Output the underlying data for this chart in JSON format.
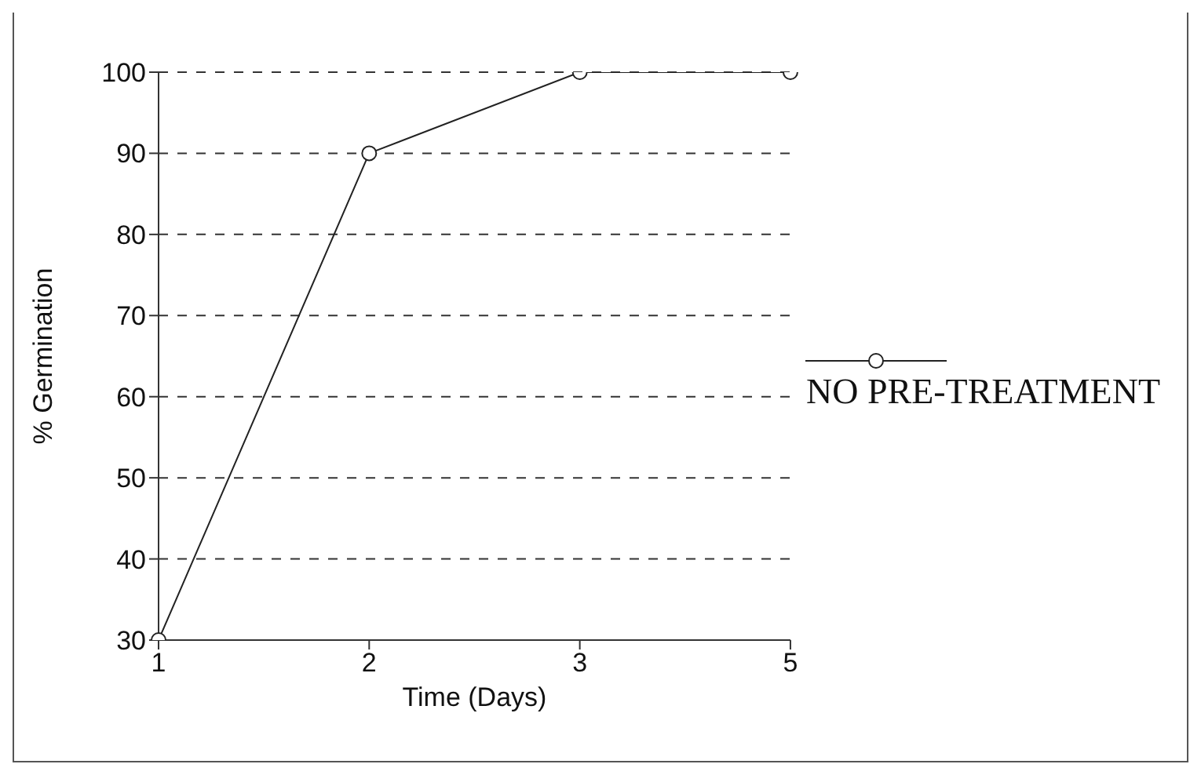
{
  "chart_data": {
    "type": "line",
    "xlabel": "Time (Days)",
    "ylabel": "% Germination",
    "categories": [
      "1",
      "2",
      "3",
      "5"
    ],
    "series": [
      {
        "name": "NO PRE-TREATMENT",
        "color": "#222222",
        "values": [
          30,
          90,
          100,
          100
        ]
      }
    ],
    "ylim": [
      30,
      100
    ],
    "yticks": [
      30,
      40,
      50,
      60,
      70,
      80,
      90,
      100
    ],
    "grid": "y",
    "legend": "right",
    "marker": "circle",
    "line_style": "solid"
  }
}
